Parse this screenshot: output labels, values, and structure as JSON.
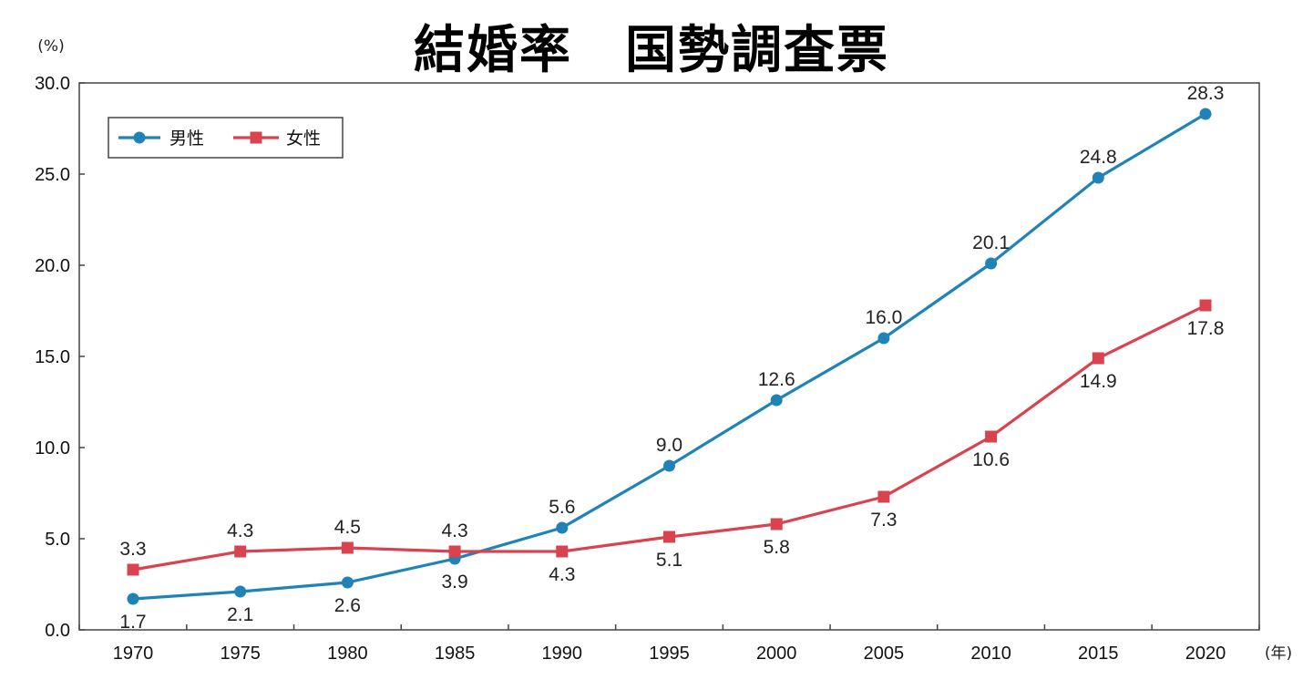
{
  "chart_data": {
    "type": "line",
    "title": "結婚率　国勢調査票",
    "y_unit": "(%)",
    "x_unit": "(年)",
    "ylim": [
      0,
      30
    ],
    "y_ticks": [
      "0.0",
      "5.0",
      "10.0",
      "15.0",
      "20.0",
      "25.0",
      "30.0"
    ],
    "categories": [
      "1970",
      "1975",
      "1980",
      "1985",
      "1990",
      "1995",
      "2000",
      "2005",
      "2010",
      "2015",
      "2020"
    ],
    "legend_position": "top-left",
    "grid": false,
    "series": [
      {
        "name": "男性",
        "color": "#1f83b8",
        "marker": "circle",
        "values": [
          1.7,
          2.1,
          2.6,
          3.9,
          5.6,
          9.0,
          12.6,
          16.0,
          20.1,
          24.8,
          28.3
        ],
        "labels": [
          "1.7",
          "2.1",
          "2.6",
          "3.9",
          "5.6",
          "9.0",
          "12.6",
          "16.0",
          "20.1",
          "24.8",
          "28.3"
        ]
      },
      {
        "name": "女性",
        "color": "#d9434f",
        "marker": "square",
        "values": [
          3.3,
          4.3,
          4.5,
          4.3,
          4.3,
          5.1,
          5.8,
          7.3,
          10.6,
          14.9,
          17.8
        ],
        "labels": [
          "3.3",
          "4.3",
          "4.5",
          "4.3",
          "4.3",
          "5.1",
          "5.8",
          "7.3",
          "10.6",
          "14.9",
          "17.8"
        ]
      }
    ]
  }
}
